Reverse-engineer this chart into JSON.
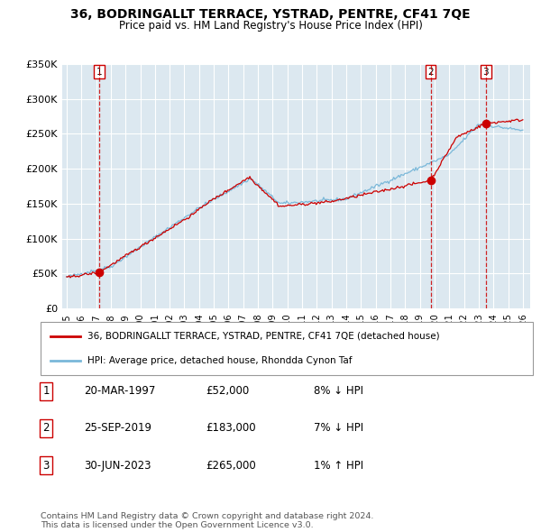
{
  "title": "36, BODRINGALLT TERRACE, YSTRAD, PENTRE, CF41 7QE",
  "subtitle": "Price paid vs. HM Land Registry's House Price Index (HPI)",
  "ylim": [
    0,
    350000
  ],
  "yticks": [
    0,
    50000,
    100000,
    150000,
    200000,
    250000,
    300000,
    350000
  ],
  "ytick_labels": [
    "£0",
    "£50K",
    "£100K",
    "£150K",
    "£200K",
    "£250K",
    "£300K",
    "£350K"
  ],
  "fig_bg_color": "#ffffff",
  "plot_bg_color": "#dce8f0",
  "grid_color": "#ffffff",
  "hpi_color": "#7ab8d9",
  "price_color": "#cc0000",
  "sale_events": [
    {
      "date_num": 1997.22,
      "price": 52000,
      "label": "1"
    },
    {
      "date_num": 2019.73,
      "price": 183000,
      "label": "2"
    },
    {
      "date_num": 2023.49,
      "price": 265000,
      "label": "3"
    }
  ],
  "legend_entries": [
    {
      "label": "36, BODRINGALLT TERRACE, YSTRAD, PENTRE, CF41 7QE (detached house)",
      "color": "#cc0000"
    },
    {
      "label": "HPI: Average price, detached house, Rhondda Cynon Taf",
      "color": "#7ab8d9"
    }
  ],
  "table_rows": [
    {
      "num": "1",
      "date": "20-MAR-1997",
      "price": "£52,000",
      "hpi": "8% ↓ HPI"
    },
    {
      "num": "2",
      "date": "25-SEP-2019",
      "price": "£183,000",
      "hpi": "7% ↓ HPI"
    },
    {
      "num": "3",
      "date": "30-JUN-2023",
      "price": "£265,000",
      "hpi": "1% ↑ HPI"
    }
  ],
  "footnote": "Contains HM Land Registry data © Crown copyright and database right 2024.\nThis data is licensed under the Open Government Licence v3.0."
}
